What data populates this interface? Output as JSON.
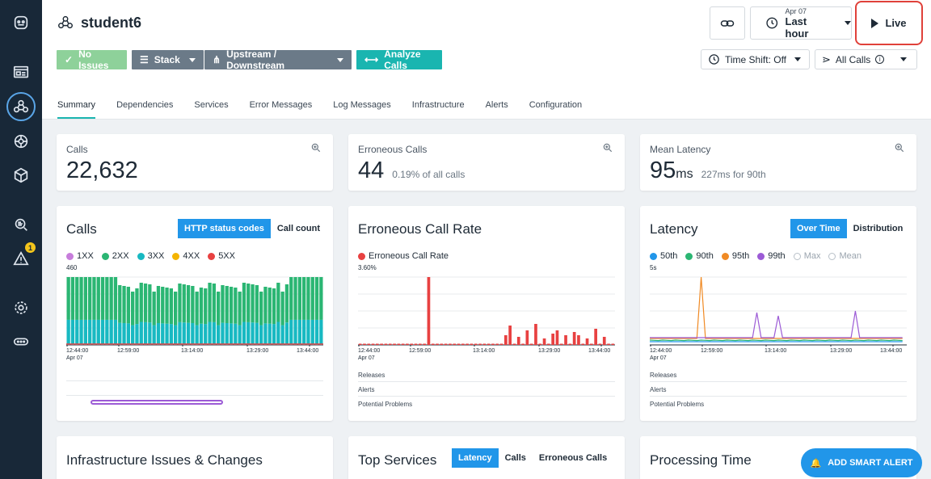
{
  "header": {
    "service_name": "student6",
    "issues_label": "No Issues",
    "stack_label": "Stack",
    "upstream_label": "Upstream / Downstream",
    "analyze_label": "Analyze Calls",
    "date_small": "Apr 07",
    "time_range": "Last hour",
    "live_label": "Live",
    "time_shift": "Time Shift: Off",
    "calls_filter": "All Calls"
  },
  "tabs": [
    "Summary",
    "Dependencies",
    "Services",
    "Error Messages",
    "Log Messages",
    "Infrastructure",
    "Alerts",
    "Configuration"
  ],
  "stats": {
    "calls": {
      "label": "Calls",
      "value": "22,632"
    },
    "errors": {
      "label": "Erroneous Calls",
      "value": "44",
      "sub": "0.19% of all calls"
    },
    "latency": {
      "label": "Mean Latency",
      "value": "95",
      "unit": "ms",
      "sub": "227ms for 90th"
    }
  },
  "calls_chart": {
    "title": "Calls",
    "toggle_on": "HTTP status codes",
    "toggle_off": "Call count",
    "legend": [
      {
        "name": "1XX",
        "color": "#c77ddb"
      },
      {
        "name": "2XX",
        "color": "#2bb673"
      },
      {
        "name": "3XX",
        "color": "#18b9c2"
      },
      {
        "name": "4XX",
        "color": "#f4b400"
      },
      {
        "name": "5XX",
        "color": "#e84141"
      }
    ],
    "ymax": "460",
    "xticks": [
      "12:44:00",
      "12:59:00",
      "13:14:00",
      "13:29:00",
      "13:44:00"
    ],
    "xdate": "Apr 07"
  },
  "err_chart": {
    "title": "Erroneous Call Rate",
    "legend": "Erroneous Call Rate",
    "legend_color": "#e84141",
    "ymax": "3.60%",
    "xticks": [
      "12:44:00",
      "12:59:00",
      "13:14:00",
      "13:29:00",
      "13:44:00"
    ],
    "xdate": "Apr 07",
    "rows": [
      "Releases",
      "Alerts",
      "Potential Problems"
    ]
  },
  "lat_chart": {
    "title": "Latency",
    "toggle_on": "Over Time",
    "toggle_off": "Distribution",
    "legend": [
      {
        "name": "50th",
        "color": "#2196e9"
      },
      {
        "name": "90th",
        "color": "#2bb673"
      },
      {
        "name": "95th",
        "color": "#f08a24"
      },
      {
        "name": "99th",
        "color": "#9c5bd6"
      },
      {
        "name": "Max",
        "color": ""
      },
      {
        "name": "Mean",
        "color": ""
      }
    ],
    "ymax": "5s",
    "xticks": [
      "12:44:00",
      "12:59:00",
      "13:14:00",
      "13:29:00",
      "13:44:00"
    ],
    "xdate": "Apr 07",
    "rows": [
      "Releases",
      "Alerts",
      "Potential Problems"
    ]
  },
  "bottom": {
    "infra_title": "Infrastructure Issues & Changes",
    "top_services_title": "Top Services",
    "ts_tabs": [
      "Latency",
      "Calls",
      "Erroneous Calls"
    ],
    "processing_title": "Processing Time",
    "add_alert": "ADD SMART ALERT"
  }
}
